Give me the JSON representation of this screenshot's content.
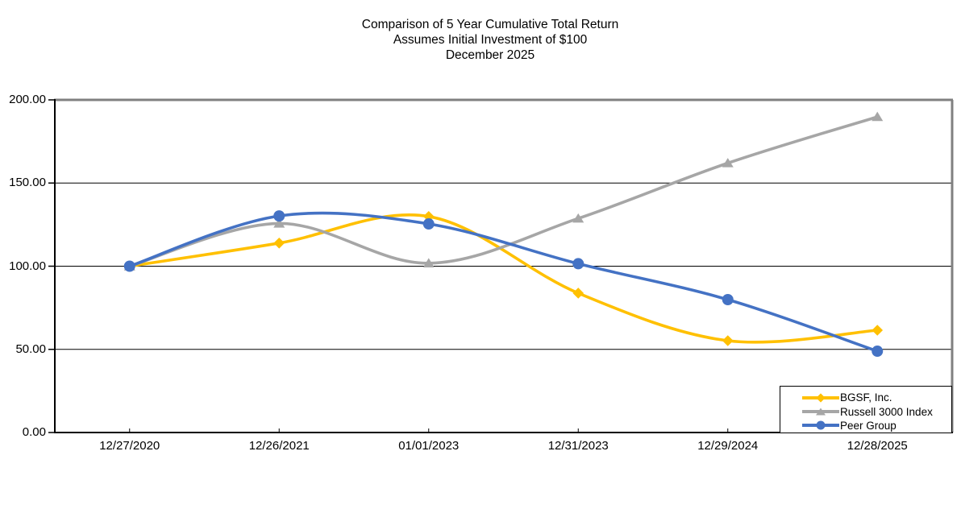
{
  "title": {
    "line1": "Comparison of 5 Year Cumulative Total Return",
    "line2": "Assumes Initial Investment of $100",
    "line3": "December 2025"
  },
  "chart_data": {
    "type": "line",
    "smoothed": true,
    "title": "Comparison of 5 Year Cumulative Total Return",
    "subtitle": "Assumes Initial Investment of $100",
    "period_label": "December 2025",
    "x": [
      "12/27/2020",
      "12/26/2021",
      "01/01/2023",
      "12/31/2023",
      "12/29/2024",
      "12/28/2025"
    ],
    "series": [
      {
        "name": "BGSF, Inc.",
        "color": "#FFC000",
        "marker": "diamond",
        "values": [
          100.0,
          113.9,
          129.9,
          83.8,
          55.2,
          61.5
        ]
      },
      {
        "name": "Russell 3000 Index",
        "color": "#A6A6A6",
        "marker": "triangle",
        "values": [
          100.0,
          125.7,
          101.8,
          128.7,
          162.0,
          189.8
        ]
      },
      {
        "name": "Peer Group",
        "color": "#4472C4",
        "marker": "circle",
        "values": [
          100.0,
          130.2,
          125.4,
          101.5,
          79.9,
          48.9
        ]
      }
    ],
    "ylim": [
      0,
      200
    ],
    "yticks": [
      {
        "value": 0,
        "label": "0.00"
      },
      {
        "value": 50,
        "label": "50.00"
      },
      {
        "value": 100,
        "label": "100.00"
      },
      {
        "value": 150,
        "label": "150.00"
      },
      {
        "value": 200,
        "label": "200.00"
      }
    ],
    "grid": "horizontal",
    "gridline_color": "#000000",
    "frame_color": "#808080",
    "axis_color": "#000000",
    "legend_position": "bottom-right"
  }
}
